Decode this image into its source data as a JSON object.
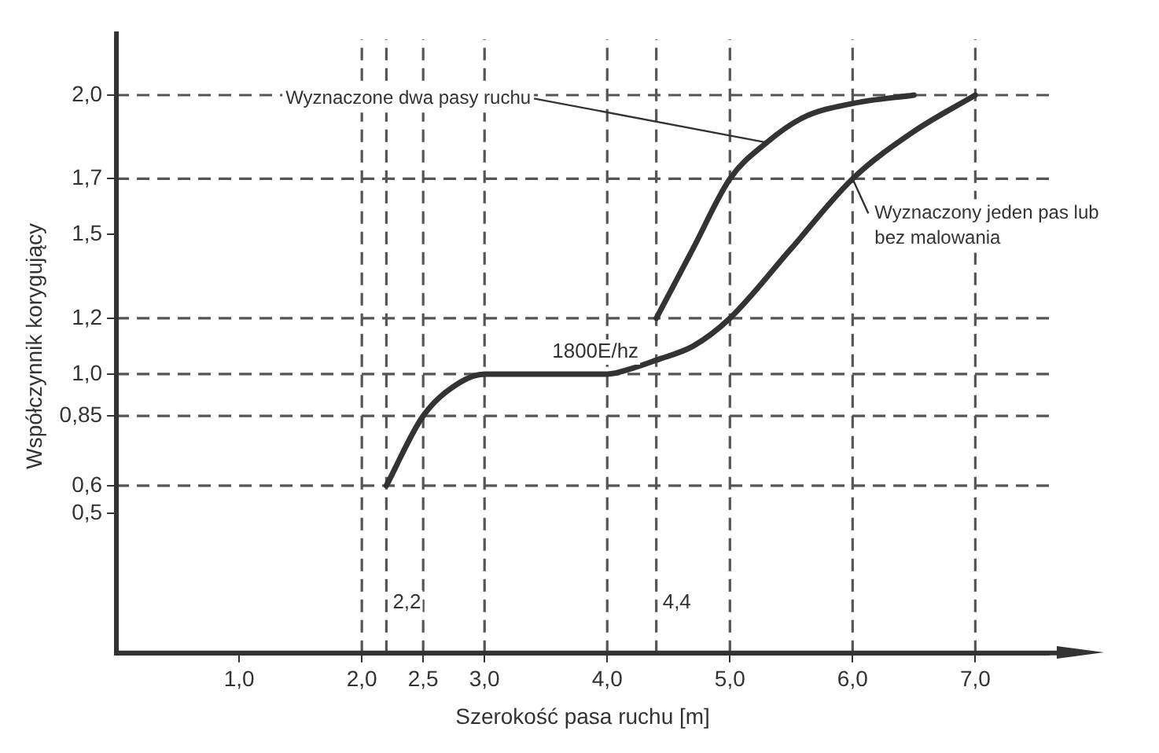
{
  "chart_data": {
    "type": "line",
    "xlabel": "Szerokość pasa ruchu [m]",
    "ylabel": "Współczynnik korygujący",
    "series": [
      {
        "name": "Wyznaczone dwa pasy ruchu",
        "color": "#333333",
        "x": [
          4.4,
          4.7,
          5.0,
          5.3,
          5.6,
          6.0,
          6.5
        ],
        "values": [
          1.2,
          1.45,
          1.7,
          1.83,
          1.92,
          1.97,
          2.0
        ]
      },
      {
        "name": "Wyznaczony jeden pas lub bez malowania",
        "color": "#333333",
        "x": [
          2.2,
          2.5,
          2.8,
          3.0,
          4.0,
          4.2,
          4.4,
          4.7,
          5.0,
          5.5,
          6.0,
          6.5,
          7.0
        ],
        "values": [
          0.6,
          0.85,
          0.97,
          1.0,
          1.0,
          1.02,
          1.05,
          1.1,
          1.2,
          1.45,
          1.7,
          1.87,
          2.0
        ]
      }
    ],
    "xlim": [
      0,
      7.6
    ],
    "ylim": [
      0,
      2.2
    ],
    "xticks": [
      {
        "value": 1,
        "label": "1,0"
      },
      {
        "value": 2,
        "label": "2,0"
      },
      {
        "value": 2.5,
        "label": "2,5"
      },
      {
        "value": 3,
        "label": "3,0"
      },
      {
        "value": 4,
        "label": "4,0"
      },
      {
        "value": 5,
        "label": "5,0"
      },
      {
        "value": 6,
        "label": "6,0"
      },
      {
        "value": 7,
        "label": "7,0"
      }
    ],
    "yticks": [
      {
        "value": 0.5,
        "label": "0,5"
      },
      {
        "value": 0.6,
        "label": "0,6"
      },
      {
        "value": 0.85,
        "label": "0,85"
      },
      {
        "value": 1.0,
        "label": "1,0"
      },
      {
        "value": 1.2,
        "label": "1,2"
      },
      {
        "value": 1.5,
        "label": "1,5"
      },
      {
        "value": 1.7,
        "label": "1,7"
      },
      {
        "value": 2.0,
        "label": "2,0"
      }
    ],
    "ref_lines": [
      {
        "axis": "y",
        "value": 0.6,
        "line_style": "dashed"
      },
      {
        "axis": "y",
        "value": 0.85,
        "line_style": "dashed"
      },
      {
        "axis": "y",
        "value": 1.0,
        "line_style": "dashed"
      },
      {
        "axis": "y",
        "value": 1.2,
        "line_style": "dashed"
      },
      {
        "axis": "y",
        "value": 1.7,
        "line_style": "dashed"
      },
      {
        "axis": "y",
        "value": 2.0,
        "line_style": "dashed"
      },
      {
        "axis": "x",
        "value": 2.0,
        "line_style": "dashed"
      },
      {
        "axis": "x",
        "value": 2.2,
        "line_style": "dashed"
      },
      {
        "axis": "x",
        "value": 2.5,
        "line_style": "dashed"
      },
      {
        "axis": "x",
        "value": 3.0,
        "line_style": "dashed"
      },
      {
        "axis": "x",
        "value": 4.0,
        "line_style": "dashed"
      },
      {
        "axis": "x",
        "value": 4.4,
        "line_style": "dashed"
      },
      {
        "axis": "x",
        "value": 5.0,
        "line_style": "dashed"
      },
      {
        "axis": "x",
        "value": 6.0,
        "line_style": "dashed"
      },
      {
        "axis": "x",
        "value": 7.0,
        "line_style": "dashed"
      }
    ],
    "annotations": [
      {
        "text": "1800E/hz",
        "x": 3.5,
        "y": 1.0
      },
      {
        "text": "2,2",
        "x": 2.2,
        "y": 0.1
      },
      {
        "text": "4,4",
        "x": 4.4,
        "y": 0.1
      }
    ],
    "grid": false,
    "legend": false,
    "marker": "none",
    "line_style": "solid"
  }
}
